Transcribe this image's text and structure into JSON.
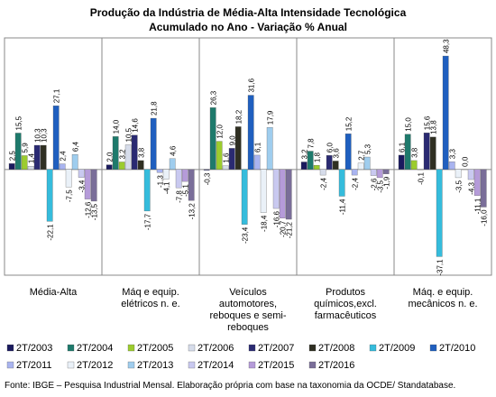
{
  "chart_data": {
    "type": "bar",
    "title": "Produção da Indústria de Média-Alta Intensidade Tecnológica",
    "subtitle": "Acumulado no Ano - Variação % Anual",
    "source": "Fonte: IBGE – Pesquisa Industrial Mensal. Elaboração própria com base na taxonomia da OCDE/ Standatabase.",
    "categories": [
      "Média-Alta",
      "Máq e equip. elétricos n. e.",
      "Veículos automotores, reboques e semi-reboques",
      "Produtos químicos,excl. farmacêuticos",
      "Máq. e equip. mecânicos n. e."
    ],
    "ylim": [
      -45,
      56
    ],
    "series": [
      {
        "name": "2T/2003",
        "color": "#1a1a5e",
        "values": [
          2.5,
          2.0,
          -0.3,
          3.2,
          6.1
        ],
        "value_labels": [
          "2,5",
          "2,0",
          "-0,3",
          "3,2",
          "6,1"
        ]
      },
      {
        "name": "2T/2004",
        "color": "#1e7a6c",
        "values": [
          15.5,
          14.0,
          26.3,
          7.8,
          15.0
        ],
        "value_labels": [
          "15,5",
          "14,0",
          "26,3",
          "7,8",
          "15,0"
        ]
      },
      {
        "name": "2T/2005",
        "color": "#9ccc2e",
        "values": [
          5.9,
          3.2,
          12.0,
          1.8,
          3.8
        ],
        "value_labels": [
          "5,9",
          "3,2",
          "12,0",
          "1,8",
          "3,8"
        ]
      },
      {
        "name": "2T/2006",
        "color": "#d6dcea",
        "values": [
          1.4,
          10.5,
          1.6,
          -2.4,
          -0.1
        ],
        "value_labels": [
          "1,4",
          "10,5",
          "1,6",
          "-2,4",
          "-0,1"
        ]
      },
      {
        "name": "2T/2007",
        "color": "#2a2a72",
        "values": [
          10.3,
          14.6,
          9.0,
          6.0,
          15.6
        ],
        "value_labels": [
          "10,3",
          "14,6",
          "9,0",
          "6,0",
          "15,6"
        ]
      },
      {
        "name": "2T/2008",
        "color": "#2f2f22",
        "values": [
          10.3,
          3.8,
          18.2,
          3.6,
          13.8
        ],
        "value_labels": [
          "10,3",
          "3,8",
          "18,2",
          "3,6",
          "13,8"
        ]
      },
      {
        "name": "2T/2009",
        "color": "#35bcdc",
        "values": [
          -22.1,
          -17.7,
          -23.4,
          -11.4,
          -37.1
        ],
        "value_labels": [
          "-22,1",
          "-17,7",
          "-23,4",
          "-11,4",
          "-37,1"
        ]
      },
      {
        "name": "2T/2010",
        "color": "#1f5fbf",
        "values": [
          27.1,
          21.8,
          31.6,
          15.2,
          48.3
        ],
        "value_labels": [
          "27,1",
          "21,8",
          "31,6",
          "15,2",
          "48,3"
        ]
      },
      {
        "name": "2T/2011",
        "color": "#a9b4f0",
        "values": [
          2.4,
          -1.3,
          6.1,
          -2.4,
          3.3
        ],
        "value_labels": [
          "2,4",
          "-1,3",
          "6,1",
          "-2,4",
          "3,3"
        ]
      },
      {
        "name": "2T/2012",
        "color": "#eaf1f8",
        "values": [
          -7.5,
          -4.1,
          -18.4,
          2.7,
          -3.5
        ],
        "value_labels": [
          "-7,5",
          "-4,1",
          "-18,4",
          "2,7",
          "-3,5"
        ]
      },
      {
        "name": "2T/2013",
        "color": "#9fcdee",
        "values": [
          6.4,
          4.6,
          17.9,
          5.3,
          0.0
        ],
        "value_labels": [
          "6,4",
          "4,6",
          "17,9",
          "5,3",
          "0,0"
        ]
      },
      {
        "name": "2T/2014",
        "color": "#c9c9f0",
        "values": [
          -3.4,
          -7.8,
          -16.6,
          -2.6,
          -4.3
        ],
        "value_labels": [
          "-3,4",
          "-7,8",
          "-16,6",
          "-2,6",
          "-4,3"
        ]
      },
      {
        "name": "2T/2015",
        "color": "#b59bd9",
        "values": [
          -12.6,
          -5.1,
          -20.7,
          -3.5,
          -11.1
        ],
        "value_labels": [
          "-12,6",
          "-5,1",
          "-20,7",
          "-3,5",
          "-11,1"
        ]
      },
      {
        "name": "2T/2016",
        "color": "#7a6e99",
        "values": [
          -13.5,
          -13.2,
          -21.2,
          -1.9,
          -16.0
        ],
        "value_labels": [
          "-13,5",
          "-13,2",
          "-21,2",
          "-1,9",
          "-16,0"
        ]
      }
    ]
  }
}
